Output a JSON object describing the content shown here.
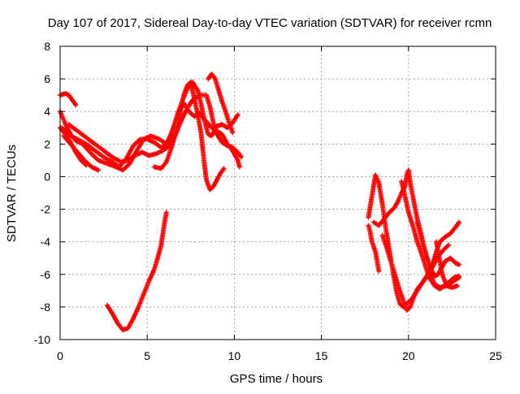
{
  "chart_data": {
    "type": "scatter",
    "title": "Day 107 of 2017, Sidereal Day-to-day VTEC variation (SDTVAR) for receiver rcmn",
    "xlabel": "GPS time / hours",
    "ylabel": "SDTVAR / TECUs",
    "xlim": [
      0,
      25
    ],
    "ylim": [
      -10,
      8
    ],
    "xticks": [
      "0",
      "5",
      "10",
      "15",
      "20",
      "25"
    ],
    "yticks": [
      "-10",
      "-8",
      "-6",
      "-4",
      "-2",
      "0",
      "2",
      "4",
      "6",
      "8"
    ],
    "grid": true,
    "marker": "+",
    "color": "#ff0000",
    "series": [
      {
        "points": [
          [
            0.0,
            5.0
          ],
          [
            0.3,
            5.1
          ],
          [
            0.5,
            5.0
          ],
          [
            0.7,
            4.7
          ],
          [
            0.9,
            4.4
          ]
        ]
      },
      {
        "points": [
          [
            0.0,
            3.0
          ],
          [
            0.3,
            2.6
          ],
          [
            0.6,
            2.1
          ],
          [
            0.9,
            1.5
          ],
          [
            1.2,
            1.0
          ],
          [
            1.5,
            0.7
          ]
        ]
      },
      {
        "points": [
          [
            0.0,
            4.0
          ],
          [
            0.2,
            3.5
          ],
          [
            0.4,
            3.0
          ],
          [
            0.6,
            2.6
          ],
          [
            0.9,
            2.2
          ],
          [
            1.3,
            2.0
          ],
          [
            1.8,
            1.4
          ],
          [
            2.2,
            1.0
          ],
          [
            2.7,
            0.8
          ],
          [
            3.2,
            0.6
          ],
          [
            3.6,
            0.4
          ],
          [
            4.0,
            0.8
          ],
          [
            4.4,
            1.6
          ],
          [
            4.8,
            2.3
          ],
          [
            5.2,
            2.5
          ],
          [
            5.7,
            2.3
          ],
          [
            6.1,
            2.0
          ],
          [
            6.4,
            2.7
          ],
          [
            6.7,
            3.7
          ],
          [
            7.0,
            4.6
          ],
          [
            7.3,
            5.4
          ],
          [
            7.6,
            5.8
          ],
          [
            7.9,
            5.3
          ],
          [
            8.1,
            4.4
          ],
          [
            8.3,
            3.4
          ],
          [
            8.5,
            2.6
          ],
          [
            8.7,
            2.5
          ],
          [
            9.0,
            3.1
          ],
          [
            9.3,
            3.2
          ],
          [
            9.6,
            3.0
          ],
          [
            9.9,
            3.3
          ],
          [
            10.2,
            3.8
          ]
        ]
      },
      {
        "points": [
          [
            0.1,
            3.0
          ],
          [
            0.6,
            2.5
          ],
          [
            1.0,
            2.3
          ],
          [
            1.5,
            2.0
          ],
          [
            2.0,
            1.6
          ],
          [
            2.5,
            1.2
          ],
          [
            3.0,
            0.9
          ],
          [
            3.4,
            0.6
          ],
          [
            3.8,
            1.1
          ],
          [
            4.2,
            1.9
          ],
          [
            4.6,
            2.3
          ],
          [
            5.0,
            2.3
          ],
          [
            5.4,
            2.1
          ],
          [
            5.8,
            1.8
          ],
          [
            6.2,
            2.0
          ],
          [
            6.5,
            2.9
          ],
          [
            6.8,
            4.0
          ],
          [
            7.1,
            4.5
          ],
          [
            7.4,
            4.0
          ],
          [
            7.7,
            3.7
          ],
          [
            8.0,
            3.9
          ],
          [
            8.3,
            3.5
          ],
          [
            8.7,
            3.0
          ],
          [
            9.0,
            2.8
          ],
          [
            9.3,
            2.6
          ],
          [
            9.6,
            2.0
          ],
          [
            9.9,
            1.6
          ],
          [
            10.2,
            1.0
          ],
          [
            10.3,
            0.6
          ]
        ]
      },
      {
        "points": [
          [
            0.2,
            2.5
          ],
          [
            0.6,
            2.0
          ],
          [
            1.0,
            1.5
          ],
          [
            1.4,
            1.0
          ],
          [
            1.8,
            0.6
          ],
          [
            2.2,
            0.4
          ]
        ]
      },
      {
        "points": [
          [
            0.5,
            3.2
          ],
          [
            1.0,
            2.8
          ],
          [
            1.5,
            2.4
          ],
          [
            2.0,
            2.0
          ],
          [
            2.5,
            1.6
          ],
          [
            3.0,
            1.2
          ],
          [
            3.5,
            0.9
          ],
          [
            3.9,
            1.0
          ],
          [
            4.3,
            1.3
          ],
          [
            4.7,
            1.5
          ],
          [
            5.1,
            1.3
          ],
          [
            5.5,
            1.4
          ],
          [
            5.9,
            1.6
          ],
          [
            6.3,
            1.9
          ],
          [
            6.6,
            2.5
          ],
          [
            6.9,
            3.3
          ],
          [
            7.2,
            4.0
          ],
          [
            7.6,
            4.7
          ],
          [
            8.0,
            5.0
          ],
          [
            8.4,
            5.0
          ],
          [
            8.6,
            4.3
          ],
          [
            8.8,
            3.3
          ],
          [
            9.0,
            2.6
          ],
          [
            9.3,
            2.1
          ],
          [
            9.6,
            1.9
          ],
          [
            9.9,
            1.8
          ],
          [
            10.2,
            1.5
          ],
          [
            10.4,
            1.2
          ]
        ]
      },
      {
        "points": [
          [
            5.4,
            0.6
          ],
          [
            5.8,
            0.5
          ],
          [
            6.1,
            0.9
          ],
          [
            6.4,
            1.8
          ],
          [
            6.7,
            2.9
          ],
          [
            6.9,
            4.0
          ],
          [
            7.1,
            5.0
          ],
          [
            7.3,
            5.6
          ],
          [
            7.5,
            5.8
          ],
          [
            7.7,
            4.8
          ],
          [
            7.9,
            3.8
          ],
          [
            8.1,
            2.6
          ],
          [
            8.2,
            1.6
          ],
          [
            8.3,
            0.6
          ],
          [
            8.4,
            -0.2
          ],
          [
            8.6,
            -0.8
          ],
          [
            8.8,
            -0.6
          ],
          [
            9.0,
            -0.2
          ],
          [
            9.2,
            0.2
          ],
          [
            9.4,
            0.5
          ]
        ]
      },
      {
        "points": [
          [
            8.5,
            6.0
          ],
          [
            8.7,
            6.3
          ],
          [
            8.9,
            6.0
          ],
          [
            9.1,
            5.3
          ],
          [
            9.3,
            4.6
          ],
          [
            9.5,
            4.0
          ],
          [
            9.7,
            3.3
          ],
          [
            9.9,
            2.7
          ]
        ]
      },
      {
        "points": [
          [
            2.7,
            -7.9
          ],
          [
            3.0,
            -8.4
          ],
          [
            3.3,
            -9.0
          ],
          [
            3.6,
            -9.4
          ],
          [
            3.9,
            -9.3
          ],
          [
            4.2,
            -8.7
          ],
          [
            4.5,
            -8.0
          ],
          [
            4.8,
            -7.2
          ],
          [
            5.1,
            -6.4
          ],
          [
            5.4,
            -5.7
          ],
          [
            5.6,
            -5.0
          ],
          [
            5.8,
            -4.2
          ],
          [
            5.9,
            -3.5
          ],
          [
            6.0,
            -2.8
          ],
          [
            6.1,
            -2.2
          ]
        ]
      },
      {
        "points": [
          [
            17.7,
            -3.0
          ],
          [
            17.8,
            -3.4
          ],
          [
            17.9,
            -4.0
          ],
          [
            18.1,
            -4.6
          ],
          [
            18.2,
            -5.2
          ],
          [
            18.3,
            -5.8
          ]
        ]
      },
      {
        "points": [
          [
            17.7,
            -2.5
          ],
          [
            17.9,
            -1.2
          ],
          [
            18.1,
            0.1
          ],
          [
            18.3,
            -0.4
          ],
          [
            18.5,
            -1.7
          ],
          [
            18.7,
            -3.2
          ],
          [
            18.9,
            -4.5
          ],
          [
            19.1,
            -5.8
          ],
          [
            19.3,
            -7.0
          ],
          [
            19.5,
            -7.8
          ],
          [
            19.7,
            -8.0
          ],
          [
            19.9,
            -7.8
          ],
          [
            20.2,
            -7.5
          ],
          [
            20.5,
            -7.0
          ],
          [
            20.8,
            -6.5
          ],
          [
            21.1,
            -6.0
          ],
          [
            21.4,
            -5.3
          ],
          [
            21.6,
            -4.6
          ],
          [
            21.8,
            -4.0
          ],
          [
            22.1,
            -3.7
          ],
          [
            22.4,
            -3.5
          ],
          [
            22.7,
            -3.1
          ],
          [
            22.9,
            -2.8
          ]
        ]
      },
      {
        "points": [
          [
            18.0,
            -2.8
          ],
          [
            18.3,
            -3.0
          ],
          [
            18.6,
            -2.6
          ],
          [
            18.9,
            -2.2
          ],
          [
            19.2,
            -1.9
          ],
          [
            19.4,
            -1.5
          ],
          [
            19.6,
            -1.0
          ],
          [
            19.8,
            -0.6
          ],
          [
            19.9,
            0.1
          ],
          [
            20.0,
            0.4
          ],
          [
            20.1,
            -0.4
          ],
          [
            20.3,
            -1.5
          ],
          [
            20.5,
            -2.6
          ],
          [
            20.7,
            -3.4
          ],
          [
            20.9,
            -4.4
          ],
          [
            21.1,
            -5.2
          ],
          [
            21.3,
            -6.1
          ],
          [
            21.5,
            -6.6
          ],
          [
            21.8,
            -6.8
          ],
          [
            22.2,
            -6.7
          ],
          [
            22.6,
            -6.4
          ],
          [
            22.9,
            -6.2
          ]
        ]
      },
      {
        "points": [
          [
            18.5,
            -3.6
          ],
          [
            18.7,
            -4.2
          ],
          [
            18.9,
            -4.9
          ],
          [
            19.1,
            -5.6
          ],
          [
            19.3,
            -6.3
          ],
          [
            19.5,
            -7.0
          ],
          [
            19.7,
            -7.6
          ],
          [
            19.9,
            -8.2
          ],
          [
            20.1,
            -8.0
          ],
          [
            20.3,
            -7.4
          ],
          [
            20.5,
            -6.9
          ],
          [
            20.8,
            -6.5
          ],
          [
            21.1,
            -6.1
          ],
          [
            21.4,
            -5.5
          ],
          [
            21.7,
            -4.9
          ],
          [
            22.0,
            -4.5
          ],
          [
            22.3,
            -4.2
          ]
        ]
      },
      {
        "points": [
          [
            19.6,
            -0.3
          ],
          [
            19.8,
            -1.2
          ],
          [
            20.0,
            -2.2
          ],
          [
            20.3,
            -3.2
          ],
          [
            20.5,
            -4.0
          ],
          [
            20.8,
            -4.9
          ],
          [
            21.0,
            -5.6
          ],
          [
            21.2,
            -6.2
          ],
          [
            21.5,
            -6.7
          ],
          [
            21.8,
            -6.9
          ],
          [
            22.2,
            -6.6
          ],
          [
            22.6,
            -6.2
          ],
          [
            22.9,
            -6.1
          ]
        ]
      },
      {
        "points": [
          [
            20.5,
            -2.8
          ],
          [
            20.7,
            -3.6
          ],
          [
            20.9,
            -4.4
          ],
          [
            21.1,
            -5.1
          ],
          [
            21.3,
            -5.7
          ],
          [
            21.5,
            -6.1
          ],
          [
            21.7,
            -6.0
          ],
          [
            21.9,
            -5.6
          ],
          [
            22.1,
            -5.2
          ],
          [
            22.4,
            -5.0
          ],
          [
            22.7,
            -5.3
          ],
          [
            22.9,
            -5.4
          ]
        ]
      },
      {
        "points": [
          [
            21.6,
            -4.0
          ],
          [
            21.7,
            -4.6
          ],
          [
            21.8,
            -5.2
          ],
          [
            21.9,
            -5.8
          ],
          [
            22.0,
            -6.2
          ],
          [
            22.2,
            -6.7
          ],
          [
            22.5,
            -6.8
          ],
          [
            22.8,
            -6.7
          ]
        ]
      }
    ]
  }
}
